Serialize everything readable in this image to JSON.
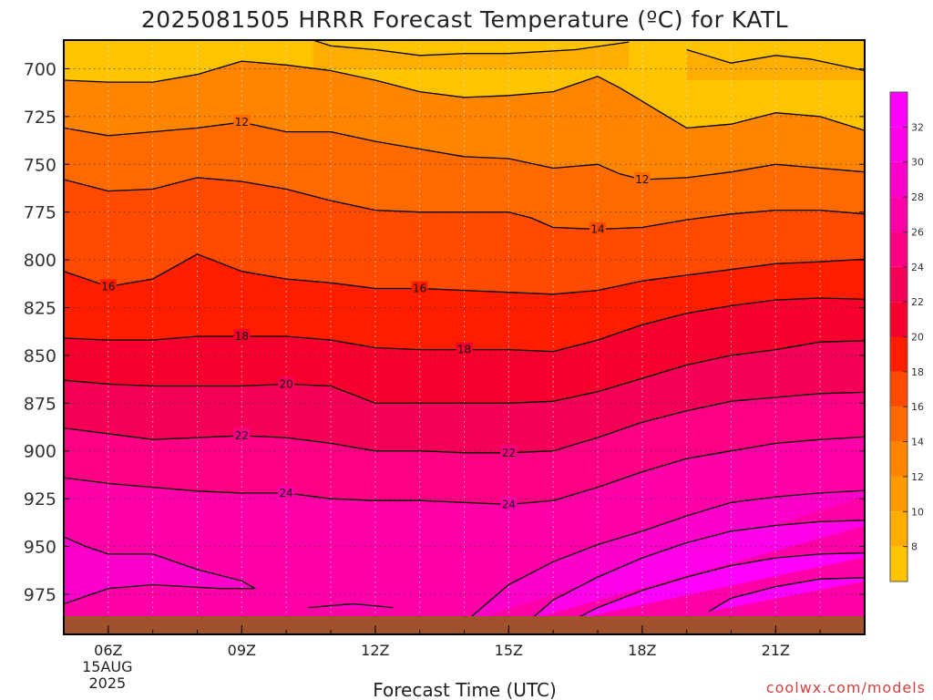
{
  "title": "2025081505 HRRR Forecast Temperature (ºC) for KATL",
  "credit": "coolwx.com/models",
  "chart_data": {
    "type": "heatmap",
    "title": "2025081505 HRRR Forecast Temperature (ºC) for KATL",
    "xlabel": "Forecast Time (UTC)",
    "ylabel": "",
    "x_range_hours": [
      5,
      23
    ],
    "y_range_mb": [
      685,
      996
    ],
    "y_scale": "reversed-pressure",
    "grid": true,
    "y_ticks": [
      "700",
      "725",
      "750",
      "775",
      "800",
      "825",
      "850",
      "875",
      "900",
      "925",
      "950",
      "975"
    ],
    "y_tick_values": [
      700,
      725,
      750,
      775,
      800,
      825,
      850,
      875,
      900,
      925,
      950,
      975
    ],
    "x_ticks": [
      {
        "hour": 6,
        "label": "06Z"
      },
      {
        "hour": 9,
        "label": "09Z"
      },
      {
        "hour": 12,
        "label": "12Z"
      },
      {
        "hour": 15,
        "label": "15Z"
      },
      {
        "hour": 18,
        "label": "18Z"
      },
      {
        "hour": 21,
        "label": "21Z"
      }
    ],
    "x_tick_date": "15AUG",
    "x_tick_year": "2025",
    "colorbar": {
      "ticks": [
        8,
        10,
        12,
        14,
        16,
        18,
        20,
        22,
        24,
        26,
        28,
        30,
        32
      ],
      "min": 6,
      "max": 34,
      "placement": "right"
    },
    "fill_levels": [
      6,
      8,
      10,
      12,
      14,
      16,
      18,
      20,
      22,
      24,
      26,
      28,
      30,
      32
    ],
    "level_colors": [
      "#ffc400",
      "#ffad00",
      "#ff9b00",
      "#ff8500",
      "#ff6a00",
      "#ff4a00",
      "#ff1d00",
      "#f8002e",
      "#f40059",
      "#fe0083",
      "#ff00a8",
      "#fd00c9",
      "#ff00e8",
      "#ff00ff"
    ],
    "ground_color": "#a0522d",
    "isotherms": [
      {
        "level": 8,
        "label": "",
        "points": [
          [
            10.6,
            685
          ],
          [
            11.0,
            688
          ],
          [
            12.0,
            690
          ],
          [
            13.0,
            693
          ],
          [
            14.0,
            692
          ],
          [
            15.0,
            692
          ],
          [
            16.5,
            690
          ],
          [
            17.7,
            686
          ]
        ]
      },
      {
        "level": 8,
        "label": "",
        "points": [
          [
            19.0,
            690
          ],
          [
            20.0,
            697
          ],
          [
            21.0,
            693
          ],
          [
            21.8,
            695
          ],
          [
            23.0,
            701
          ],
          [
            23.5,
            704
          ]
        ]
      },
      {
        "level": 10,
        "label": "",
        "points": [
          [
            5.0,
            706
          ],
          [
            6.0,
            707
          ],
          [
            7.0,
            707
          ],
          [
            8.0,
            703
          ],
          [
            9.0,
            696
          ],
          [
            10.0,
            698
          ],
          [
            11.0,
            701
          ],
          [
            12.0,
            706
          ],
          [
            13.0,
            712
          ],
          [
            14.0,
            715
          ],
          [
            15.0,
            714
          ],
          [
            16.0,
            712
          ],
          [
            17.0,
            704
          ],
          [
            17.5,
            710
          ],
          [
            18.0,
            717
          ],
          [
            19.0,
            731
          ],
          [
            20.0,
            729
          ],
          [
            21.0,
            723
          ],
          [
            22.0,
            725
          ],
          [
            23.5,
            736
          ]
        ]
      },
      {
        "level": 12,
        "label": "12",
        "label_at": [
          [
            9.0,
            728
          ],
          [
            18.0,
            758
          ]
        ],
        "points": [
          [
            5.0,
            731
          ],
          [
            6.0,
            735
          ],
          [
            7.0,
            733
          ],
          [
            8.0,
            731
          ],
          [
            9.0,
            728
          ],
          [
            10.0,
            733
          ],
          [
            11.0,
            733
          ],
          [
            12.0,
            738
          ],
          [
            13.0,
            742
          ],
          [
            14.0,
            746
          ],
          [
            15.0,
            747
          ],
          [
            16.0,
            752
          ],
          [
            17.0,
            750
          ],
          [
            17.5,
            755
          ],
          [
            18.0,
            758
          ],
          [
            19.0,
            757
          ],
          [
            20.0,
            754
          ],
          [
            21.0,
            750
          ],
          [
            22.0,
            752
          ],
          [
            23.5,
            755
          ]
        ]
      },
      {
        "level": 14,
        "label": "14",
        "label_at": [
          [
            17.0,
            784
          ]
        ]
      },
      {
        "level": 14,
        "label": "",
        "points": [
          [
            5.0,
            758
          ],
          [
            6.0,
            764
          ],
          [
            7.0,
            763
          ],
          [
            8.0,
            757
          ],
          [
            9.0,
            759
          ],
          [
            10.0,
            763
          ],
          [
            11.0,
            769
          ],
          [
            12.0,
            774
          ],
          [
            13.0,
            775
          ],
          [
            14.0,
            775
          ],
          [
            15.0,
            775
          ],
          [
            15.5,
            778
          ],
          [
            16.0,
            783
          ],
          [
            17.0,
            784
          ],
          [
            18.0,
            783
          ],
          [
            19.0,
            779
          ],
          [
            20.0,
            776
          ],
          [
            21.0,
            774
          ],
          [
            22.0,
            774
          ],
          [
            23.5,
            777
          ]
        ]
      },
      {
        "level": 16,
        "label": "16",
        "label_at": [
          [
            6.0,
            814
          ],
          [
            13.0,
            815
          ]
        ],
        "points": [
          [
            5.0,
            806
          ],
          [
            6.0,
            814
          ],
          [
            7.0,
            810
          ],
          [
            8.0,
            797
          ],
          [
            9.0,
            806
          ],
          [
            10.0,
            810
          ],
          [
            11.0,
            812
          ],
          [
            12.0,
            815
          ],
          [
            13.0,
            815
          ],
          [
            14.0,
            816
          ],
          [
            15.0,
            817
          ],
          [
            16.0,
            818
          ],
          [
            17.0,
            816
          ],
          [
            18.0,
            811
          ],
          [
            19.0,
            808
          ],
          [
            20.0,
            805
          ],
          [
            21.0,
            802
          ],
          [
            22.0,
            801
          ],
          [
            23.5,
            799
          ]
        ]
      },
      {
        "level": 18,
        "label": "18",
        "label_at": [
          [
            9.0,
            840
          ],
          [
            14.0,
            847
          ]
        ],
        "points": [
          [
            5.0,
            841
          ],
          [
            6.0,
            842
          ],
          [
            7.0,
            842
          ],
          [
            8.0,
            840
          ],
          [
            9.0,
            840
          ],
          [
            10.0,
            840
          ],
          [
            11.0,
            842
          ],
          [
            12.0,
            846
          ],
          [
            13.0,
            847
          ],
          [
            14.0,
            847
          ],
          [
            15.0,
            847
          ],
          [
            16.0,
            848
          ],
          [
            17.0,
            842
          ],
          [
            18.0,
            834
          ],
          [
            19.0,
            828
          ],
          [
            20.0,
            824
          ],
          [
            21.0,
            821
          ],
          [
            22.0,
            820
          ],
          [
            23.5,
            821
          ]
        ]
      },
      {
        "level": 20,
        "label": "20",
        "label_at": [
          [
            10.0,
            865
          ]
        ],
        "points": [
          [
            5.0,
            863
          ],
          [
            6.0,
            865
          ],
          [
            7.0,
            866
          ],
          [
            8.0,
            866
          ],
          [
            9.0,
            866
          ],
          [
            10.0,
            865
          ],
          [
            11.0,
            866
          ],
          [
            12.0,
            875
          ],
          [
            13.0,
            875
          ],
          [
            14.0,
            875
          ],
          [
            15.0,
            875
          ],
          [
            16.0,
            874
          ],
          [
            17.0,
            869
          ],
          [
            18.0,
            862
          ],
          [
            19.0,
            855
          ],
          [
            20.0,
            850
          ],
          [
            21.0,
            847
          ],
          [
            22.0,
            843
          ],
          [
            23.5,
            842
          ]
        ]
      },
      {
        "level": 22,
        "label": "22",
        "label_at": [
          [
            9.0,
            892
          ],
          [
            15.0,
            901
          ]
        ],
        "points": [
          [
            5.0,
            888
          ],
          [
            6.0,
            891
          ],
          [
            7.0,
            894
          ],
          [
            8.0,
            893
          ],
          [
            9.0,
            892
          ],
          [
            10.0,
            893
          ],
          [
            11.0,
            896
          ],
          [
            12.0,
            900
          ],
          [
            13.0,
            900
          ],
          [
            14.0,
            901
          ],
          [
            15.0,
            901
          ],
          [
            16.0,
            900
          ],
          [
            17.0,
            893
          ],
          [
            18.0,
            885
          ],
          [
            19.0,
            879
          ],
          [
            20.0,
            874
          ],
          [
            21.0,
            872
          ],
          [
            22.0,
            870
          ],
          [
            23.5,
            869
          ]
        ]
      },
      {
        "level": 24,
        "label": "24",
        "label_at": [
          [
            10.0,
            922
          ],
          [
            15.0,
            928
          ]
        ],
        "points": [
          [
            5.0,
            914
          ],
          [
            6.0,
            917
          ],
          [
            7.0,
            919
          ],
          [
            8.0,
            921
          ],
          [
            9.0,
            922
          ],
          [
            10.0,
            922
          ],
          [
            11.0,
            925
          ],
          [
            12.0,
            926
          ],
          [
            13.0,
            926
          ],
          [
            14.0,
            927
          ],
          [
            15.0,
            928
          ],
          [
            16.0,
            926
          ],
          [
            17.0,
            919
          ],
          [
            18.0,
            911
          ],
          [
            19.0,
            904
          ],
          [
            20.0,
            900
          ],
          [
            21.0,
            896
          ],
          [
            22.0,
            894
          ],
          [
            23.5,
            892
          ]
        ]
      },
      {
        "level": 26,
        "label": "",
        "points": [
          [
            5.0,
            945
          ],
          [
            5.5,
            950
          ],
          [
            6.0,
            954
          ],
          [
            7.0,
            954
          ],
          [
            8.0,
            962
          ],
          [
            9.0,
            968
          ],
          [
            9.3,
            972
          ],
          [
            8.5,
            972
          ],
          [
            7.0,
            970
          ],
          [
            6.0,
            972
          ],
          [
            5.0,
            980
          ]
        ]
      },
      {
        "level": 26,
        "label": "",
        "points": [
          [
            14.0,
            990
          ],
          [
            15.0,
            970
          ],
          [
            16.0,
            958
          ],
          [
            17.0,
            949
          ],
          [
            18.0,
            942
          ],
          [
            19.0,
            934
          ],
          [
            20.0,
            927
          ],
          [
            21.0,
            924
          ],
          [
            22.0,
            922
          ],
          [
            23.5,
            920
          ]
        ]
      },
      {
        "level": 28,
        "label": "",
        "points": [
          [
            15.5,
            988
          ],
          [
            16.0,
            978
          ],
          [
            17.0,
            966
          ],
          [
            18.0,
            956
          ],
          [
            19.0,
            948
          ],
          [
            20.0,
            942
          ],
          [
            21.0,
            939
          ],
          [
            22.0,
            937
          ],
          [
            23.5,
            936
          ]
        ]
      },
      {
        "level": 30,
        "label": "",
        "points": [
          [
            16.5,
            988
          ],
          [
            17.0,
            982
          ],
          [
            18.0,
            973
          ],
          [
            19.0,
            966
          ],
          [
            20.0,
            960
          ],
          [
            21.0,
            956
          ],
          [
            22.0,
            954
          ],
          [
            23.5,
            953
          ]
        ]
      },
      {
        "level": 32,
        "label": "",
        "points": [
          [
            19.5,
            984
          ],
          [
            20.0,
            977
          ],
          [
            21.0,
            971
          ],
          [
            22.0,
            967
          ],
          [
            23.5,
            966
          ]
        ]
      },
      {
        "level": 26,
        "label": "",
        "points": [
          [
            10.5,
            982
          ],
          [
            11.5,
            980
          ],
          [
            12.4,
            982
          ]
        ]
      }
    ]
  }
}
